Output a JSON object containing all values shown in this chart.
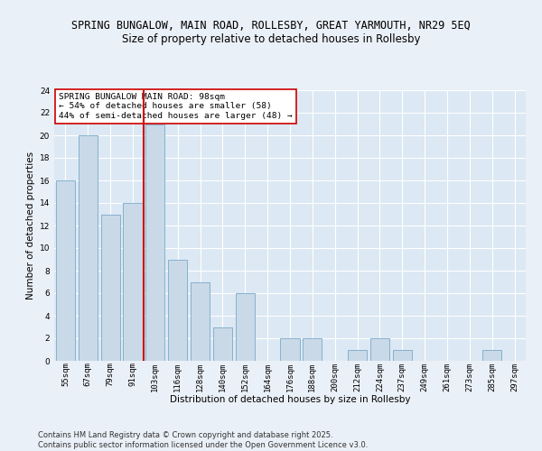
{
  "title1": "SPRING BUNGALOW, MAIN ROAD, ROLLESBY, GREAT YARMOUTH, NR29 5EQ",
  "title2": "Size of property relative to detached houses in Rollesby",
  "xlabel": "Distribution of detached houses by size in Rollesby",
  "ylabel": "Number of detached properties",
  "categories": [
    "55sqm",
    "67sqm",
    "79sqm",
    "91sqm",
    "103sqm",
    "116sqm",
    "128sqm",
    "140sqm",
    "152sqm",
    "164sqm",
    "176sqm",
    "188sqm",
    "200sqm",
    "212sqm",
    "224sqm",
    "237sqm",
    "249sqm",
    "261sqm",
    "273sqm",
    "285sqm",
    "297sqm"
  ],
  "values": [
    16,
    20,
    13,
    14,
    21,
    9,
    7,
    3,
    6,
    0,
    2,
    2,
    0,
    1,
    2,
    1,
    0,
    0,
    0,
    1,
    0
  ],
  "bar_color": "#c9d9e8",
  "bar_edge_color": "#7aaac8",
  "vline_x_index": 3.5,
  "vline_color": "#cc0000",
  "annotation_text": "SPRING BUNGALOW MAIN ROAD: 98sqm\n← 54% of detached houses are smaller (58)\n44% of semi-detached houses are larger (48) →",
  "annotation_box_color": "#ffffff",
  "annotation_box_edge": "#cc0000",
  "ylim": [
    0,
    24
  ],
  "yticks": [
    0,
    2,
    4,
    6,
    8,
    10,
    12,
    14,
    16,
    18,
    20,
    22,
    24
  ],
  "footer": "Contains HM Land Registry data © Crown copyright and database right 2025.\nContains public sector information licensed under the Open Government Licence v3.0.",
  "background_color": "#eaf0f7",
  "plot_background": "#dce8f3",
  "grid_color": "#ffffff",
  "title_fontsize": 8.5,
  "subtitle_fontsize": 8.5,
  "tick_fontsize": 6.5,
  "label_fontsize": 7.5,
  "footer_fontsize": 6.0,
  "annotation_fontsize": 6.8
}
